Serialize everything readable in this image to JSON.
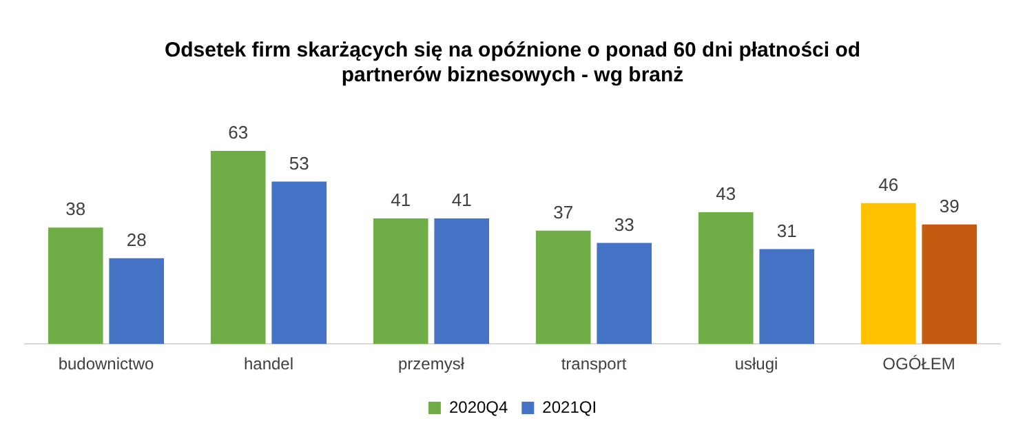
{
  "chart_data": {
    "type": "bar",
    "title": "Odsetek firm skarżących się na opóźnione o ponad 60 dni płatności od partnerów biznesowych - wg branż",
    "categories": [
      "budownictwo",
      "handel",
      "przemysł",
      "transport",
      "usługi",
      "OGÓŁEM"
    ],
    "series": [
      {
        "name": "2020Q4",
        "color": "#70ad47",
        "colors": [
          "#70ad47",
          "#70ad47",
          "#70ad47",
          "#70ad47",
          "#70ad47",
          "#ffc000"
        ],
        "values": [
          38,
          63,
          41,
          37,
          43,
          46
        ]
      },
      {
        "name": "2021QI",
        "color": "#4472c4",
        "colors": [
          "#4472c4",
          "#4472c4",
          "#4472c4",
          "#4472c4",
          "#4472c4",
          "#c55a11"
        ],
        "values": [
          28,
          53,
          41,
          33,
          31,
          39
        ]
      }
    ],
    "data_labels": true,
    "grid": false,
    "legend": "bottom"
  }
}
